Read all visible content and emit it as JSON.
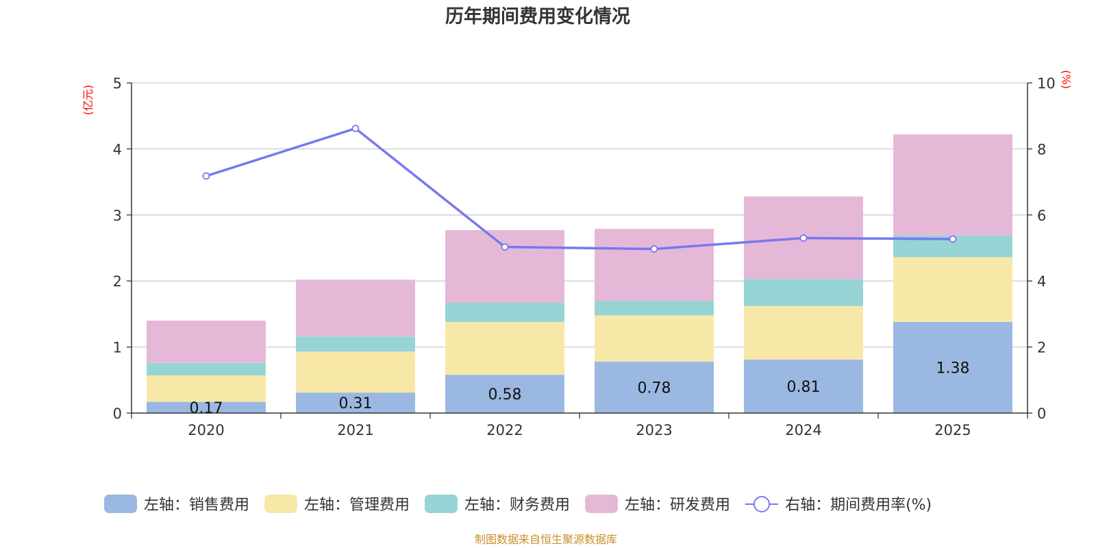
{
  "chart_data": {
    "type": "bar",
    "title": "历年期间费用变化情况",
    "categories": [
      "2020",
      "2021",
      "2022",
      "2023",
      "2024",
      "2025"
    ],
    "y_left": {
      "unit_label": "(亿元)",
      "ylim": [
        0,
        5
      ],
      "ticks": [
        "0",
        "1",
        "2",
        "3",
        "4",
        "5"
      ]
    },
    "y_right": {
      "unit_label": "(%)",
      "ylim": [
        0,
        10
      ],
      "ticks": [
        "0",
        "2",
        "4",
        "6",
        "8",
        "10"
      ]
    },
    "grid": true,
    "stacked": true,
    "series": [
      {
        "name": "左轴：销售费用",
        "type": "bar",
        "axis": "left",
        "color": "#9bb8e2",
        "values": [
          0.17,
          0.31,
          0.58,
          0.78,
          0.81,
          1.38
        ],
        "labels": [
          "0.17",
          "0.31",
          "0.58",
          "0.78",
          "0.81",
          "1.38"
        ]
      },
      {
        "name": "左轴：管理费用",
        "type": "bar",
        "axis": "left",
        "color": "#f8e8a8",
        "values": [
          0.4,
          0.62,
          0.8,
          0.7,
          0.81,
          0.98
        ]
      },
      {
        "name": "左轴：财务费用",
        "type": "bar",
        "axis": "left",
        "color": "#97d4d5",
        "values": [
          0.19,
          0.23,
          0.29,
          0.22,
          0.41,
          0.33
        ]
      },
      {
        "name": "左轴：研发费用",
        "type": "bar",
        "axis": "left",
        "color": "#e6b8d8",
        "values": [
          0.64,
          0.86,
          1.1,
          1.09,
          1.25,
          1.53
        ]
      },
      {
        "name": "右轴：期间费用率(%)",
        "type": "line",
        "axis": "right",
        "color": "#7679ee",
        "values": [
          7.18,
          8.62,
          5.03,
          4.97,
          5.3,
          5.27
        ]
      }
    ],
    "legend_position": "bottom",
    "source": "制图数据来自恒生聚源数据库"
  }
}
